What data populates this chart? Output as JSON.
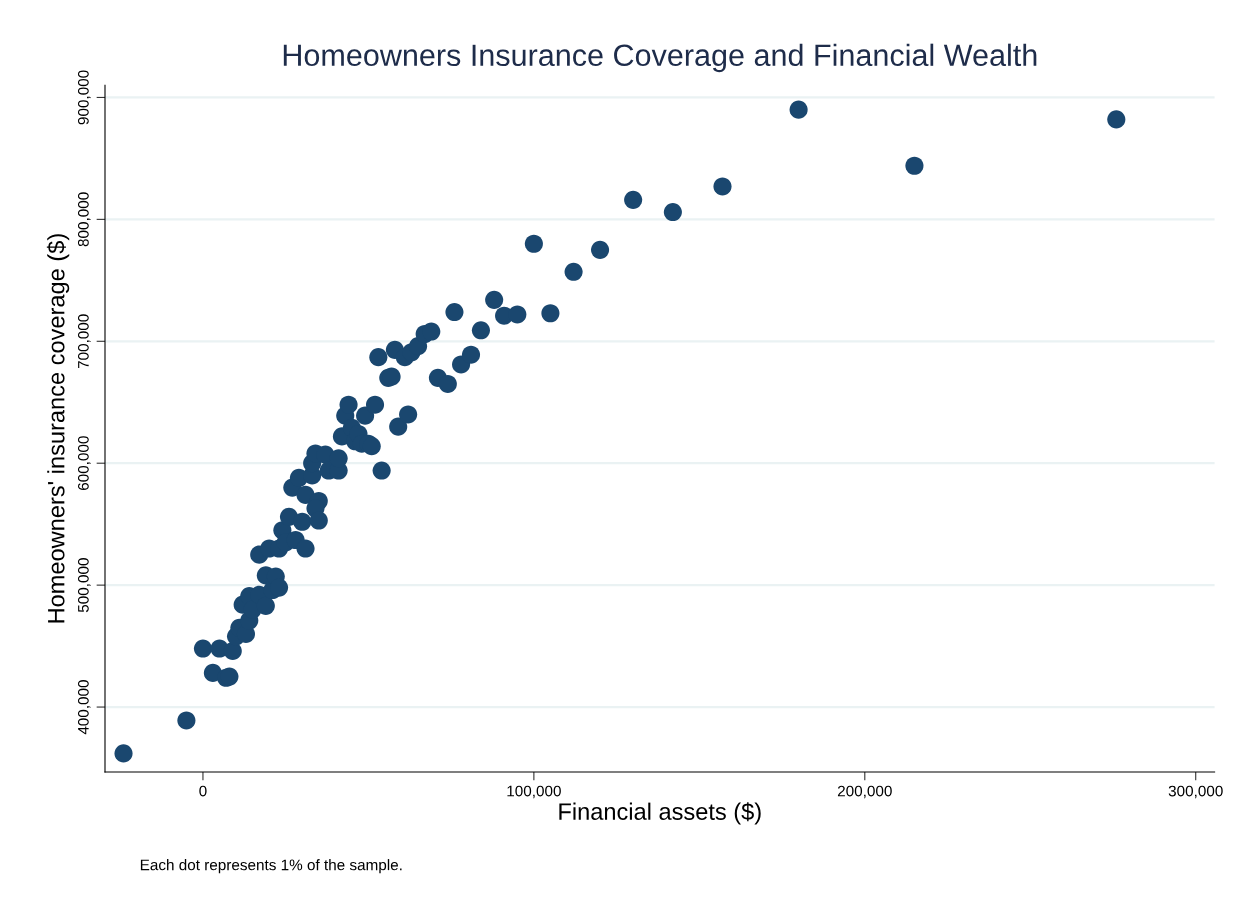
{
  "chart_data": {
    "type": "scatter",
    "title": "Homeowners Insurance Coverage and Financial Wealth",
    "xlabel": "Financial assets ($)",
    "ylabel": "Homeowners' insurance coverage ($)",
    "annotations": [
      "Each dot represents 1% of the sample."
    ],
    "marker": "circle",
    "grid": "y",
    "xlim": [
      -29600,
      305700
    ],
    "ylim": [
      346700,
      910000
    ],
    "xticks": [
      {
        "value": 0,
        "label": "0"
      },
      {
        "value": 100000,
        "label": "100,000"
      },
      {
        "value": 200000,
        "label": "200,000"
      },
      {
        "value": 300000,
        "label": "300,000"
      }
    ],
    "yticks": [
      {
        "value": 400000,
        "label": "400,000"
      },
      {
        "value": 500000,
        "label": "500,000"
      },
      {
        "value": 600000,
        "label": "600,000"
      },
      {
        "value": 700000,
        "label": "700,000"
      },
      {
        "value": 800000,
        "label": "800,000"
      },
      {
        "value": 900000,
        "label": "900,000"
      }
    ],
    "series": [
      {
        "color": "#1a476f",
        "x": [
          -24000,
          -5000,
          0,
          3000,
          5000,
          7000,
          8000,
          9000,
          10000,
          11000,
          13000,
          12000,
          14000,
          14000,
          15000,
          17000,
          19000,
          19000,
          17000,
          20000,
          21000,
          22000,
          23000,
          23000,
          24000,
          25000,
          26000,
          28000,
          30000,
          31000,
          27000,
          29000,
          31000,
          33000,
          35000,
          34000,
          35000,
          33000,
          34000,
          37000,
          38000,
          41000,
          41000,
          42000,
          43000,
          44000,
          45000,
          46000,
          47000,
          48000,
          49000,
          50000,
          51000,
          52000,
          54000,
          53000,
          56000,
          57000,
          58000,
          59000,
          61000,
          62000,
          63000,
          65000,
          67000,
          69000,
          71000,
          74000,
          76000,
          78000,
          81000,
          84000,
          88000,
          91000,
          95000,
          100000,
          105000,
          112000,
          120000,
          130000,
          142000,
          157000,
          180000,
          215000,
          276000
        ],
        "values": [
          362000,
          389000,
          448000,
          428000,
          448000,
          424000,
          425000,
          446000,
          458000,
          465000,
          460000,
          484000,
          471000,
          491000,
          480000,
          492000,
          483000,
          508000,
          525000,
          530000,
          496000,
          507000,
          498000,
          530000,
          545000,
          535000,
          556000,
          537000,
          552000,
          530000,
          580000,
          588000,
          574000,
          590000,
          569000,
          563000,
          553000,
          600000,
          608000,
          607000,
          594000,
          594000,
          604000,
          622000,
          639000,
          648000,
          629000,
          618000,
          624000,
          616000,
          639000,
          616000,
          614000,
          648000,
          594000,
          687000,
          670000,
          671000,
          693000,
          630000,
          687000,
          640000,
          691000,
          696000,
          706000,
          708000,
          670000,
          665000,
          724000,
          681000,
          689000,
          709000,
          734000,
          721000,
          722000,
          780000,
          723000,
          757000,
          775000,
          816000,
          806000,
          827000,
          890000,
          844000,
          882000
        ]
      }
    ]
  }
}
